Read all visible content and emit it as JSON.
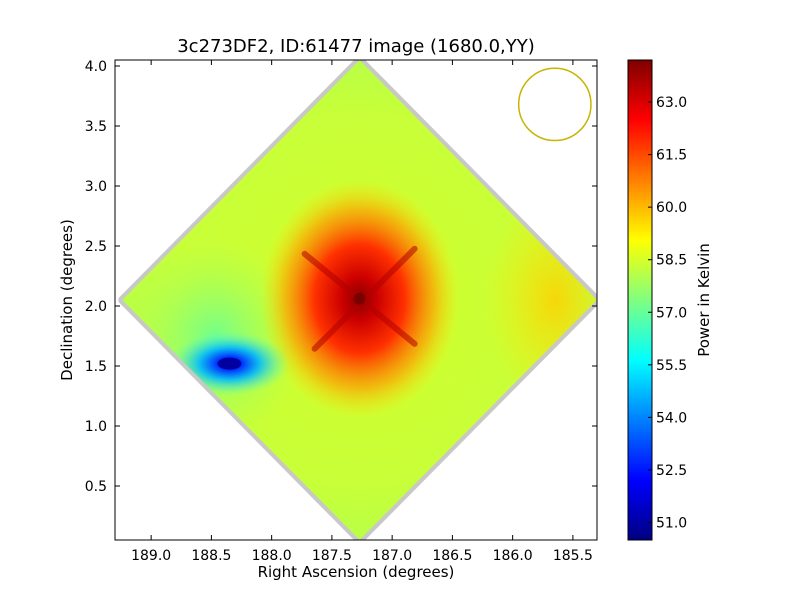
{
  "chart_data": {
    "type": "heatmap",
    "title": "3c273DF2, ID:61477 image (1680.0,YY)",
    "xlabel": "Right Ascension (degrees)",
    "ylabel": "Declination (degrees)",
    "xlim": [
      189.3,
      185.3
    ],
    "ylim": [
      0.05,
      4.05
    ],
    "x_ticks": [
      189.0,
      188.5,
      188.0,
      187.5,
      187.0,
      186.5,
      186.0,
      185.5
    ],
    "x_tick_labels": [
      "189.0",
      "188.5",
      "188.0",
      "187.5",
      "187.0",
      "186.5",
      "186.0",
      "185.5"
    ],
    "y_ticks": [
      0.5,
      1.0,
      1.5,
      2.0,
      2.5,
      3.0,
      3.5,
      4.0
    ],
    "y_tick_labels": [
      "0.5",
      "1.0",
      "1.5",
      "2.0",
      "2.5",
      "3.0",
      "3.5",
      "4.0"
    ],
    "grid": false,
    "colormap": "jet",
    "colorbar": {
      "label": "Power in Kelvin",
      "range": [
        50.5,
        64.2
      ],
      "ticks": [
        51.0,
        52.5,
        54.0,
        55.5,
        57.0,
        58.5,
        60.0,
        61.5,
        63.0
      ],
      "tick_labels": [
        "51.0",
        "52.5",
        "54.0",
        "55.5",
        "57.0",
        "58.5",
        "60.0",
        "61.5",
        "63.0"
      ]
    },
    "field": {
      "shape": "diamond",
      "center": [
        187.27,
        2.05
      ],
      "half_width_ra": 1.97,
      "half_height_dec": 2.0,
      "background_value": 58.6
    },
    "features": [
      {
        "ra": 187.27,
        "dec": 2.06,
        "value": 64.0,
        "kind": "peak"
      },
      {
        "ra": 188.35,
        "dec": 1.52,
        "value": 50.8,
        "kind": "minimum"
      }
    ],
    "beam": {
      "ra": 185.65,
      "dec": 3.68,
      "radius_deg": 0.3,
      "color": "#c8b400"
    }
  }
}
